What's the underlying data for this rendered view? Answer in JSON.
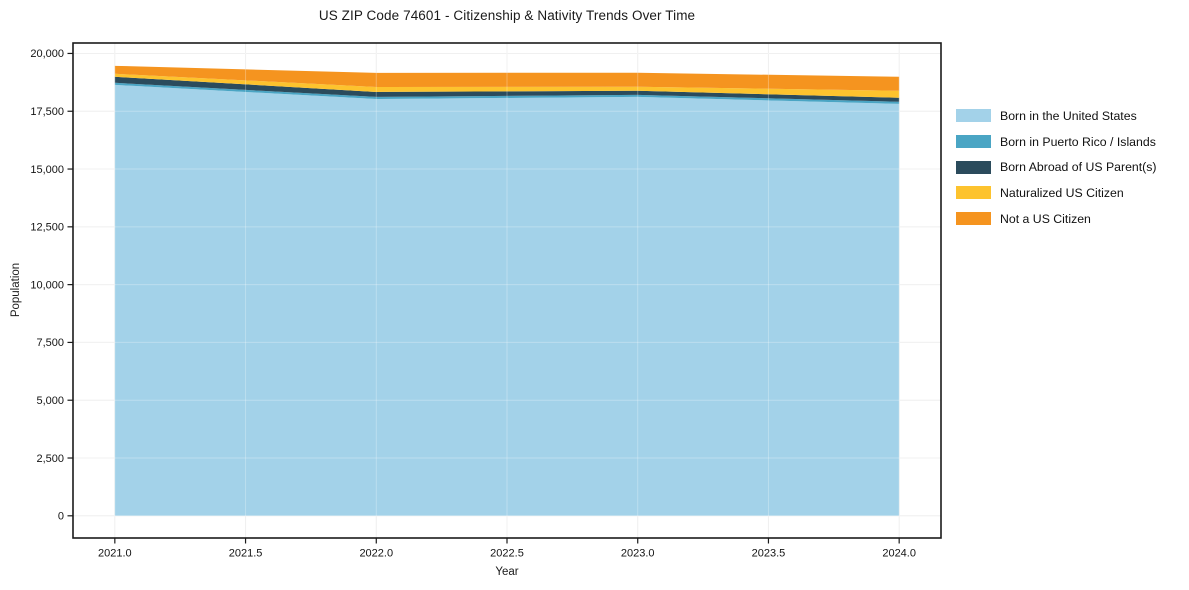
{
  "figure": {
    "background": "#ffffff",
    "text_color": "#1a1a1a",
    "grid_color": "#ebebeb",
    "spine_color": "#1a1a1a"
  },
  "chart_data": {
    "type": "area",
    "stacked": true,
    "title": "US ZIP Code 74601 - Citizenship & Nativity Trends Over Time",
    "xlabel": "Year",
    "ylabel": "Population",
    "x": [
      2021,
      2022,
      2023,
      2024
    ],
    "series": [
      {
        "name": "Born in the United States",
        "color": "#a3d2e9",
        "values": [
          18640,
          18030,
          18120,
          17820
        ]
      },
      {
        "name": "Born in Puerto Rico / Islands",
        "color": "#4aa5c4",
        "values": [
          90,
          90,
          90,
          90
        ]
      },
      {
        "name": "Born Abroad of US Parent(s)",
        "color": "#2b4b5c",
        "values": [
          260,
          215,
          175,
          175
        ]
      },
      {
        "name": "Naturalized US Citizen",
        "color": "#fdc32e",
        "values": [
          130,
          215,
          175,
          300
        ]
      },
      {
        "name": "Not a US Citizen",
        "color": "#f5941f",
        "values": [
          345,
          610,
          605,
          605
        ]
      }
    ],
    "totals": [
      19465,
      19160,
      19165,
      18990
    ],
    "xlim": [
      2020.84,
      2024.16
    ],
    "ylim": [
      -960,
      20452
    ],
    "xticks": [
      2021.0,
      2021.5,
      2022.0,
      2022.5,
      2023.0,
      2023.5,
      2024.0
    ],
    "yticks": [
      0,
      2500,
      5000,
      7500,
      10000,
      12500,
      15000,
      17500,
      20000
    ],
    "grid": true,
    "legend_position": "outside-right"
  }
}
